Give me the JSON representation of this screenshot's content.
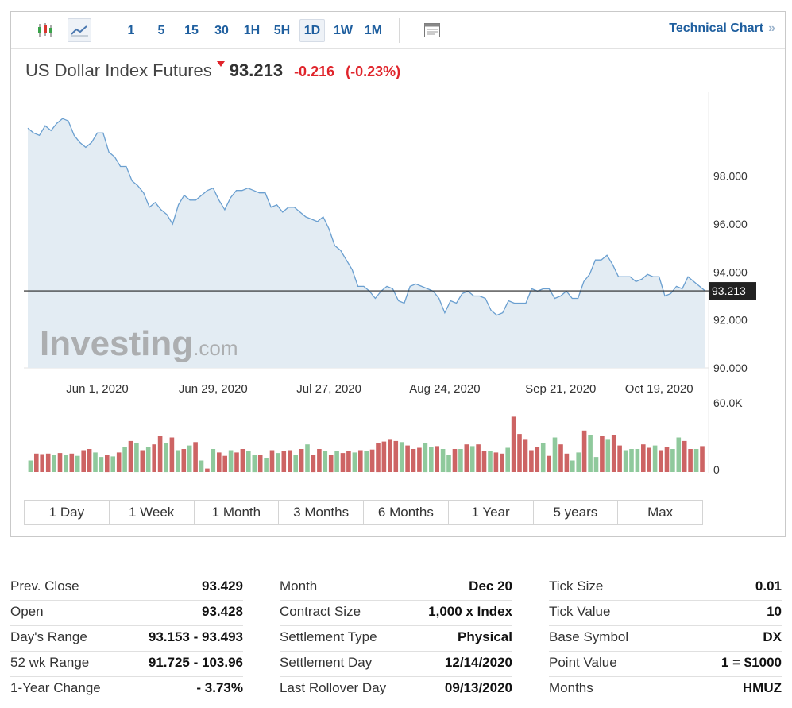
{
  "toolbar": {
    "icons": [
      "candlestick-icon",
      "line-chart-icon",
      "layout-icon"
    ],
    "timeframes": [
      "1",
      "5",
      "15",
      "30",
      "1H",
      "5H",
      "1D",
      "1W",
      "1M"
    ],
    "active_timeframe": "1D",
    "technical_chart_label": "Technical Chart",
    "technical_chart_arrow": "»"
  },
  "instrument": {
    "name": "US Dollar Index Futures",
    "last": "93.213",
    "change": "-0.216",
    "change_pct": "(-0.23%)"
  },
  "colors": {
    "line": "#6a9fd0",
    "area": "#e3ecf3",
    "down": "#e0242b",
    "vol_up": "#8fc99c",
    "vol_down": "#cd6464",
    "link": "#1f5f9f"
  },
  "chart_data": [
    {
      "type": "area",
      "y_ticks": [
        "98.000",
        "96.000",
        "94.000",
        "92.000",
        "90.000"
      ],
      "y_tick_values": [
        98,
        96,
        94,
        92,
        90
      ],
      "ylim": [
        90,
        101.5
      ],
      "x_tick_labels": [
        "Jun 1, 2020",
        "Jun 29, 2020",
        "Jul 27, 2020",
        "Aug 24, 2020",
        "Sep 21, 2020",
        "Oct 19, 2020"
      ],
      "x_tick_index": [
        12,
        32,
        52,
        72,
        92,
        109
      ],
      "last_value": 93.213,
      "last_label": "93.213",
      "watermark": "Investing.com",
      "values": [
        100.0,
        99.8,
        99.7,
        100.1,
        99.9,
        100.2,
        100.4,
        100.3,
        99.7,
        99.4,
        99.2,
        99.4,
        99.8,
        99.8,
        99.0,
        98.8,
        98.4,
        98.4,
        97.8,
        97.6,
        97.3,
        96.7,
        96.9,
        96.6,
        96.4,
        96.0,
        96.8,
        97.2,
        97.0,
        97.0,
        97.2,
        97.4,
        97.5,
        97.0,
        96.6,
        97.1,
        97.4,
        97.4,
        97.5,
        97.4,
        97.3,
        97.3,
        96.7,
        96.8,
        96.5,
        96.7,
        96.7,
        96.5,
        96.3,
        96.2,
        96.1,
        96.3,
        95.8,
        95.1,
        94.9,
        94.5,
        94.1,
        93.4,
        93.4,
        93.2,
        92.9,
        93.2,
        93.4,
        93.3,
        92.8,
        92.7,
        93.4,
        93.5,
        93.4,
        93.3,
        93.2,
        92.9,
        92.3,
        92.8,
        92.7,
        93.1,
        93.2,
        93.0,
        93.0,
        92.9,
        92.4,
        92.2,
        92.3,
        92.8,
        92.7,
        92.7,
        92.7,
        93.3,
        93.2,
        93.3,
        93.3,
        92.9,
        93.0,
        93.2,
        92.9,
        92.9,
        93.6,
        93.9,
        94.5,
        94.5,
        94.7,
        94.3,
        93.8,
        93.8,
        93.8,
        93.6,
        93.7,
        93.9,
        93.8,
        93.8,
        93.0,
        93.1,
        93.4,
        93.3,
        93.8,
        93.6,
        93.4,
        93.2
      ]
    },
    {
      "type": "bar",
      "y_ticks": [
        "60.0K",
        "0"
      ],
      "y_tick_values": [
        60000,
        0
      ],
      "ylim": [
        0,
        60000
      ],
      "values": [
        10000,
        16000,
        15500,
        16000,
        14500,
        16500,
        15000,
        16000,
        14000,
        19000,
        20000,
        17000,
        13000,
        15000,
        13500,
        17000,
        22000,
        27000,
        25000,
        19000,
        22000,
        24000,
        31000,
        25000,
        30000,
        19000,
        20000,
        23000,
        26000,
        10000,
        3000,
        20000,
        17000,
        14000,
        19000,
        17000,
        20000,
        18000,
        15000,
        15000,
        12000,
        19000,
        16500,
        18000,
        19000,
        15000,
        20000,
        24000,
        15000,
        20000,
        18000,
        15000,
        18000,
        16500,
        18000,
        17000,
        19000,
        18000,
        19500,
        25000,
        26500,
        28000,
        27000,
        26000,
        23000,
        20000,
        21000,
        25000,
        22000,
        22500,
        20000,
        15000,
        20000,
        20000,
        24000,
        22500,
        24000,
        18000,
        18000,
        17000,
        16000,
        21000,
        48000,
        33000,
        28000,
        19000,
        22000,
        25000,
        14000,
        30000,
        24000,
        16000,
        10000,
        17000,
        36000,
        32000,
        13000,
        31000,
        28000,
        32000,
        23000,
        19000,
        20000,
        20000,
        24000,
        21000,
        23000,
        19000,
        22000,
        20000,
        30000,
        27000,
        20000,
        20000,
        22500
      ],
      "up": [
        1,
        0,
        0,
        0,
        1,
        0,
        1,
        0,
        1,
        0,
        0,
        1,
        1,
        0,
        1,
        0,
        1,
        0,
        1,
        0,
        1,
        0,
        0,
        1,
        0,
        1,
        0,
        1,
        0,
        1,
        0,
        1,
        0,
        0,
        1,
        0,
        0,
        1,
        1,
        0,
        1,
        0,
        1,
        0,
        0,
        1,
        0,
        1,
        0,
        0,
        1,
        0,
        1,
        0,
        0,
        1,
        0,
        1,
        0,
        0,
        0,
        0,
        0,
        1,
        0,
        0,
        0,
        1,
        1,
        0,
        1,
        1,
        0,
        1,
        0,
        1,
        0,
        0,
        1,
        0,
        0,
        1,
        0,
        0,
        0,
        0,
        0,
        1,
        0,
        1,
        0,
        0,
        1,
        1,
        0,
        1,
        1,
        0,
        1,
        0,
        0,
        1,
        1,
        1,
        0,
        0,
        1,
        0,
        0,
        1,
        1,
        0,
        0,
        1,
        0
      ]
    }
  ],
  "range_buttons": [
    "1 Day",
    "1 Week",
    "1 Month",
    "3 Months",
    "6 Months",
    "1 Year",
    "5 years",
    "Max"
  ],
  "stats": [
    [
      {
        "label": "Prev. Close",
        "value": "93.429"
      },
      {
        "label": "Open",
        "value": "93.428"
      },
      {
        "label": "Day's Range",
        "value": "93.153 - 93.493"
      },
      {
        "label": "52 wk Range",
        "value": "91.725 - 103.96"
      },
      {
        "label": "1-Year Change",
        "value": "- 3.73%"
      }
    ],
    [
      {
        "label": "Month",
        "value": "Dec 20"
      },
      {
        "label": "Contract Size",
        "value": "1,000 x Index"
      },
      {
        "label": "Settlement Type",
        "value": "Physical"
      },
      {
        "label": "Settlement Day",
        "value": "12/14/2020"
      },
      {
        "label": "Last Rollover Day",
        "value": "09/13/2020"
      }
    ],
    [
      {
        "label": "Tick Size",
        "value": "0.01"
      },
      {
        "label": "Tick Value",
        "value": "10"
      },
      {
        "label": "Base Symbol",
        "value": "DX"
      },
      {
        "label": "Point Value",
        "value": "1 = $1000"
      },
      {
        "label": "Months",
        "value": "HMUZ"
      }
    ]
  ]
}
